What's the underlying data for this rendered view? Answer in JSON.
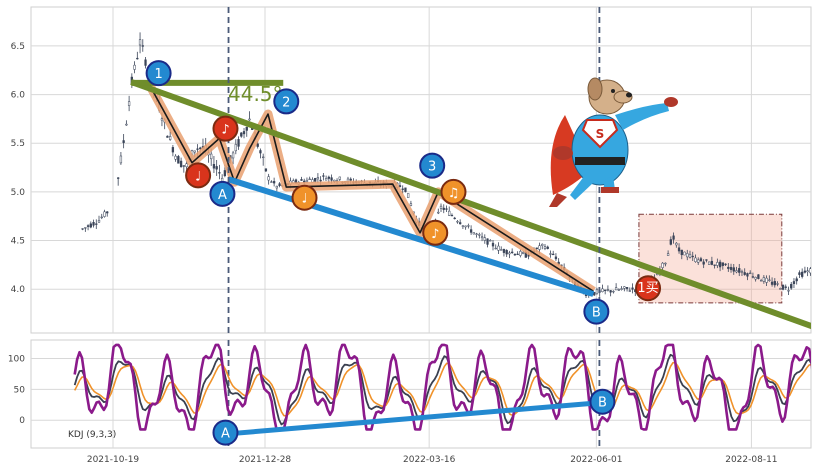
{
  "chart_data": [
    {
      "type": "candlestick",
      "panel": "price",
      "ylim": [
        3.55,
        6.9
      ],
      "yticks": [
        4.0,
        4.5,
        5.0,
        5.5,
        6.0,
        6.5
      ],
      "grid": true,
      "price_path": [
        {
          "t": -10,
          "y": 4.62
        },
        {
          "t": -5,
          "y": 4.7
        },
        {
          "t": 0,
          "y": 4.85
        },
        {
          "t": 3,
          "y": 5.4
        },
        {
          "t": 6,
          "y": 6.1
        },
        {
          "t": 9,
          "y": 6.55
        },
        {
          "t": 12,
          "y": 6.2
        },
        {
          "t": 15,
          "y": 5.9
        },
        {
          "t": 18,
          "y": 5.6
        },
        {
          "t": 21,
          "y": 5.35
        },
        {
          "t": 24,
          "y": 5.25
        },
        {
          "t": 27,
          "y": 5.45
        },
        {
          "t": 30,
          "y": 5.45
        },
        {
          "t": 33,
          "y": 5.3
        },
        {
          "t": 36,
          "y": 5.15
        },
        {
          "t": 39,
          "y": 5.35
        },
        {
          "t": 42,
          "y": 5.55
        },
        {
          "t": 45,
          "y": 5.75
        },
        {
          "t": 48,
          "y": 5.45
        },
        {
          "t": 51,
          "y": 5.15
        },
        {
          "t": 54,
          "y": 5.05
        },
        {
          "t": 60,
          "y": 5.1
        },
        {
          "t": 70,
          "y": 5.15
        },
        {
          "t": 80,
          "y": 5.1
        },
        {
          "t": 90,
          "y": 5.08
        },
        {
          "t": 96,
          "y": 5.05
        },
        {
          "t": 100,
          "y": 4.7
        },
        {
          "t": 104,
          "y": 4.5
        },
        {
          "t": 108,
          "y": 4.85
        },
        {
          "t": 112,
          "y": 4.75
        },
        {
          "t": 120,
          "y": 4.55
        },
        {
          "t": 128,
          "y": 4.4
        },
        {
          "t": 136,
          "y": 4.35
        },
        {
          "t": 142,
          "y": 4.45
        },
        {
          "t": 146,
          "y": 4.3
        },
        {
          "t": 152,
          "y": 4.05
        },
        {
          "t": 156,
          "y": 3.95
        },
        {
          "t": 162,
          "y": 3.98
        },
        {
          "t": 168,
          "y": 4.0
        },
        {
          "t": 174,
          "y": 4.0
        },
        {
          "t": 178,
          "y": 4.1
        },
        {
          "t": 182,
          "y": 4.3
        },
        {
          "t": 184,
          "y": 4.55
        },
        {
          "t": 186,
          "y": 4.4
        },
        {
          "t": 192,
          "y": 4.3
        },
        {
          "t": 200,
          "y": 4.25
        },
        {
          "t": 210,
          "y": 4.15
        },
        {
          "t": 218,
          "y": 4.05
        },
        {
          "t": 222,
          "y": 4.0
        },
        {
          "t": 226,
          "y": 4.15
        },
        {
          "t": 230,
          "y": 4.2
        }
      ],
      "trendlines": [
        {
          "name": "downtrend",
          "color": "#6f8d2b",
          "from": {
            "t": 6,
            "y": 6.13
          },
          "to": {
            "t": 245,
            "y": 3.45
          }
        },
        {
          "name": "support",
          "color": "#2389d0",
          "from": {
            "t": 38,
            "y": 5.13
          },
          "to": {
            "t": 158,
            "y": 3.95
          }
        },
        {
          "name": "horizontal",
          "color": "#6f8d2b",
          "from": {
            "t": 6,
            "y": 6.12
          },
          "to": {
            "t": 56,
            "y": 6.12
          }
        }
      ],
      "pattern_path": [
        {
          "t": 12,
          "y": 6.1
        },
        {
          "t": 26,
          "y": 5.3
        },
        {
          "t": 35,
          "y": 5.55
        },
        {
          "t": 40,
          "y": 5.1
        },
        {
          "t": 45,
          "y": 5.45
        },
        {
          "t": 51,
          "y": 5.8
        },
        {
          "t": 57,
          "y": 5.05
        },
        {
          "t": 92,
          "y": 5.08
        },
        {
          "t": 101,
          "y": 4.58
        },
        {
          "t": 107,
          "y": 5.0
        },
        {
          "t": 158,
          "y": 3.98
        }
      ],
      "vlines_t": [
        38,
        160
      ],
      "angle_label": "44.5°",
      "markers": [
        {
          "label": "1",
          "t": 15,
          "y": 6.22,
          "color": "#2389d0"
        },
        {
          "label": "2",
          "t": 57,
          "y": 5.93,
          "color": "#2389d0"
        },
        {
          "label": "3",
          "t": 105,
          "y": 5.27,
          "color": "#2389d0"
        },
        {
          "label": "♩",
          "t": 28,
          "y": 5.17,
          "color": "#d9341c"
        },
        {
          "label": "♪",
          "t": 37,
          "y": 5.65,
          "color": "#d9341c"
        },
        {
          "label": "A",
          "t": 36,
          "y": 4.98,
          "color": "#2389d0"
        },
        {
          "label": "♩",
          "t": 63,
          "y": 4.94,
          "color": "#f0922a"
        },
        {
          "label": "♪",
          "t": 106,
          "y": 4.58,
          "color": "#f0922a"
        },
        {
          "label": "♫",
          "t": 112,
          "y": 5.0,
          "color": "#f0922a"
        },
        {
          "label": "B",
          "t": 159,
          "y": 3.77,
          "color": "#2389d0"
        },
        {
          "label": "1买",
          "t": 176,
          "y": 4.01,
          "color": "#d9341c"
        }
      ],
      "highlight_box": {
        "t0": 173,
        "t1": 220,
        "y0": 3.86,
        "y1": 4.77
      }
    },
    {
      "type": "line",
      "panel": "indicator",
      "legend": "KDJ (9,3,3)",
      "ylim": [
        -45,
        130
      ],
      "yticks": [
        0,
        50,
        100
      ],
      "grid": true,
      "x_ticks": [
        {
          "t": 0,
          "label": "2021-10-19"
        },
        {
          "t": 50,
          "label": "2021-12-28"
        },
        {
          "t": 104,
          "label": "2022-03-16"
        },
        {
          "t": 159,
          "label": "2022-06-01"
        },
        {
          "t": 210,
          "label": "2022-08-11"
        }
      ],
      "series": [
        {
          "name": "K",
          "color": "#3a4050",
          "width": 1.8
        },
        {
          "name": "D",
          "color": "#f0922a",
          "width": 1.6
        },
        {
          "name": "J",
          "color": "#8b1a8b",
          "width": 2.6
        }
      ],
      "trendline": {
        "from": {
          "t": 38,
          "y": -22
        },
        "to": {
          "t": 159,
          "y": 28
        },
        "color": "#2389d0"
      },
      "markers": [
        {
          "label": "A",
          "t": 37,
          "y": -20,
          "color": "#2389d0"
        },
        {
          "label": "B",
          "t": 161,
          "y": 30,
          "color": "#2389d0"
        }
      ]
    }
  ],
  "mascot": {
    "badge": "S"
  }
}
